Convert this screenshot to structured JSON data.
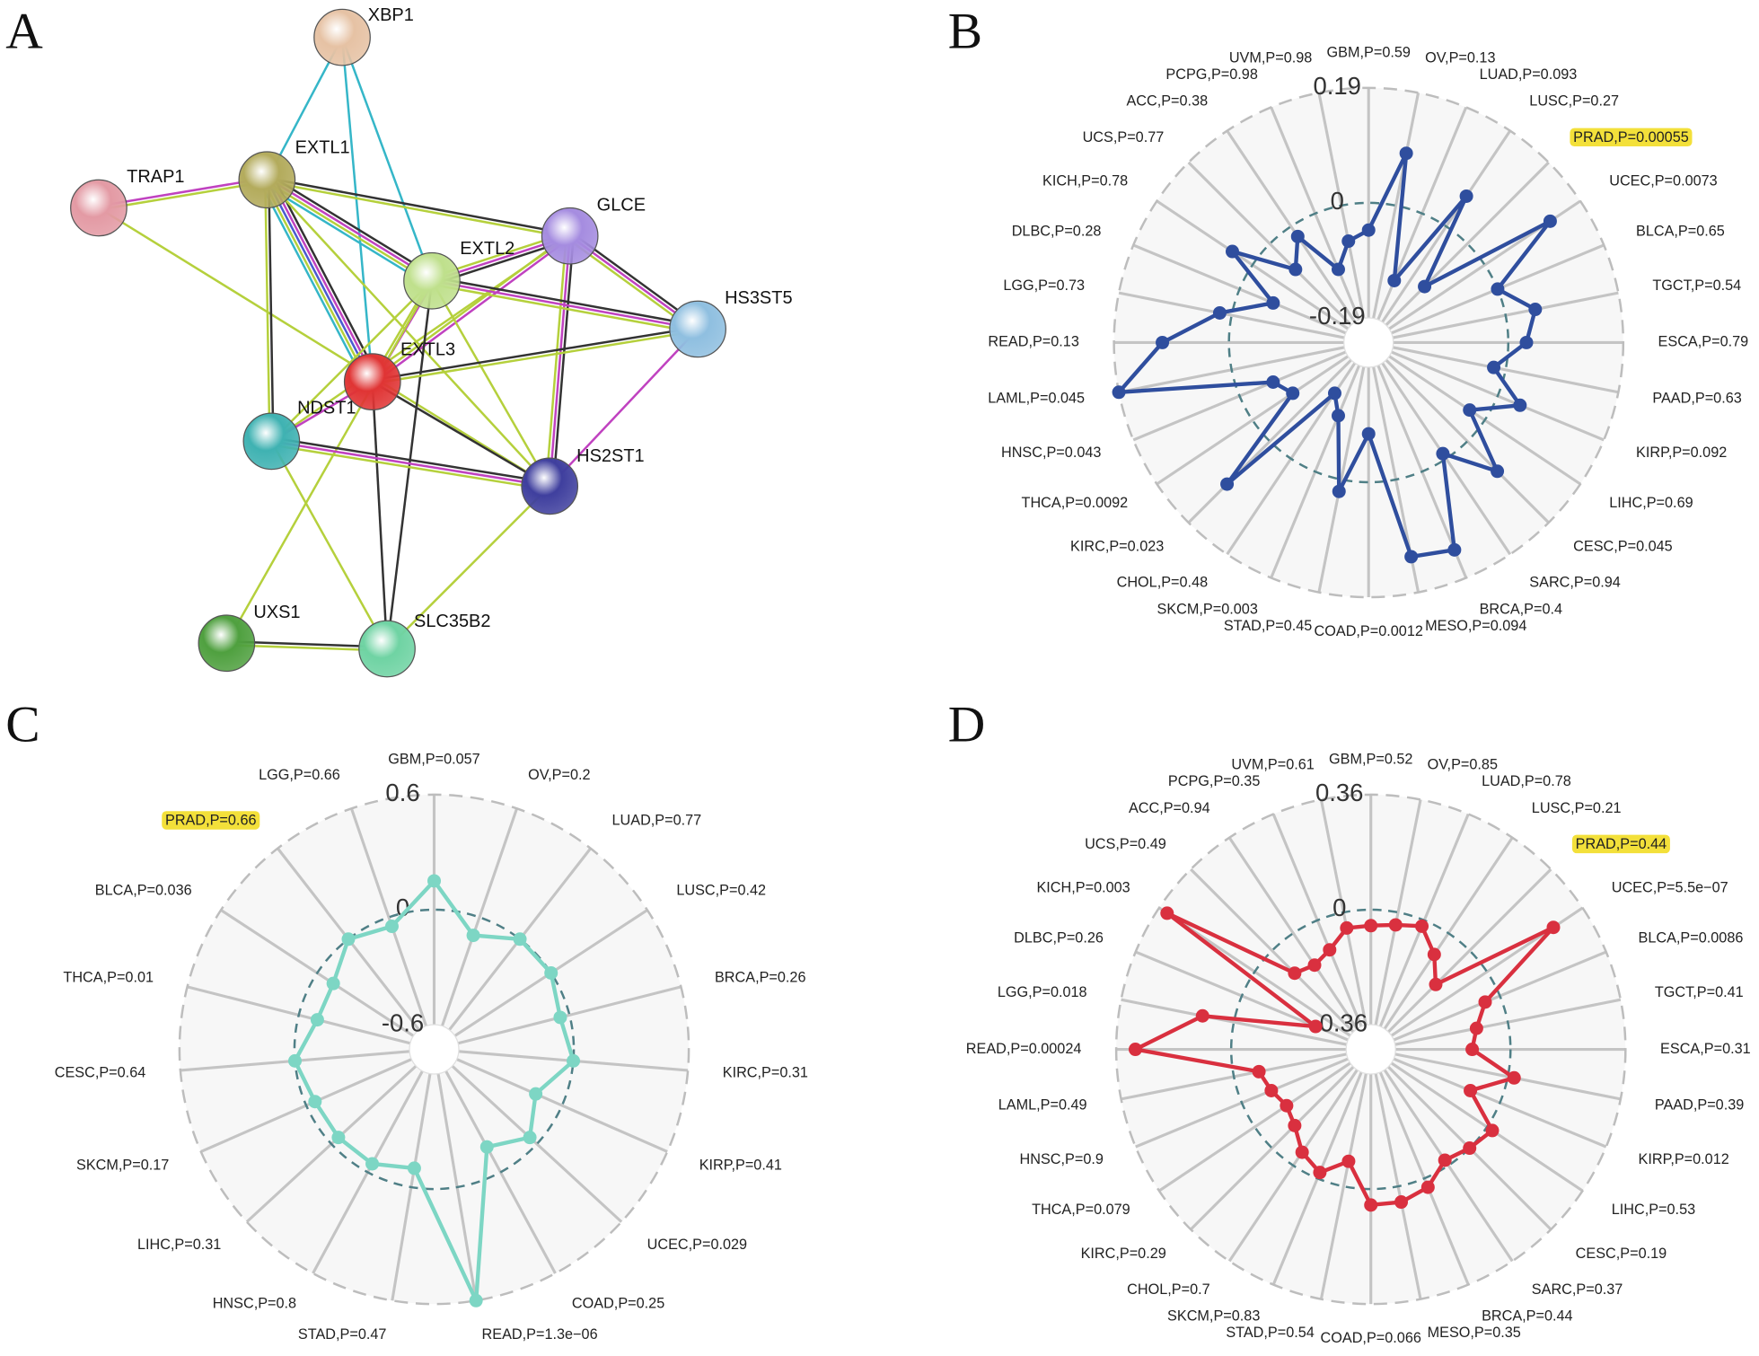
{
  "network": {
    "panel_label": "A",
    "nodes": [
      {
        "label": "XBP1",
        "color": "#e6c2a4"
      },
      {
        "label": "TRAP1",
        "color": "#e39aa4"
      },
      {
        "label": "EXTL1",
        "color": "#b3ab5c"
      },
      {
        "label": "GLCE",
        "color": "#a58ce0"
      },
      {
        "label": "EXTL2",
        "color": "#bfe08c"
      },
      {
        "label": "HS3ST5",
        "color": "#8fbfe0"
      },
      {
        "label": "EXTL3",
        "color": "#e03434"
      },
      {
        "label": "NDST1",
        "color": "#3fb2b2"
      },
      {
        "label": "HS2ST1",
        "color": "#3f3f9e"
      },
      {
        "label": "UXS1",
        "color": "#4fa03f"
      },
      {
        "label": "SLC35B2",
        "color": "#6fd3a3"
      }
    ],
    "edges": [
      {
        "source": 0,
        "target": 2,
        "colors": [
          "#35b6c8"
        ]
      },
      {
        "source": 0,
        "target": 4,
        "colors": [
          "#35b6c8"
        ]
      },
      {
        "source": 0,
        "target": 6,
        "colors": [
          "#35b6c8"
        ]
      },
      {
        "source": 1,
        "target": 2,
        "colors": [
          "#c042c0",
          "#b5d03c"
        ]
      },
      {
        "source": 1,
        "target": 8,
        "colors": [
          "#b5d03c"
        ]
      },
      {
        "source": 2,
        "target": 3,
        "colors": [
          "#333333",
          "#b5d03c"
        ]
      },
      {
        "source": 2,
        "target": 4,
        "colors": [
          "#333333",
          "#c042c0",
          "#b5d03c",
          "#35b6c8"
        ]
      },
      {
        "source": 2,
        "target": 6,
        "colors": [
          "#333333",
          "#c042c0",
          "#4a5bd0",
          "#b5d03c",
          "#35b6c8"
        ]
      },
      {
        "source": 2,
        "target": 7,
        "colors": [
          "#333333",
          "#b5d03c"
        ]
      },
      {
        "source": 2,
        "target": 8,
        "colors": [
          "#b5d03c"
        ]
      },
      {
        "source": 3,
        "target": 4,
        "colors": [
          "#333333",
          "#c042c0",
          "#b5d03c"
        ]
      },
      {
        "source": 3,
        "target": 5,
        "colors": [
          "#333333",
          "#c042c0",
          "#b5d03c"
        ]
      },
      {
        "source": 3,
        "target": 8,
        "colors": [
          "#333333",
          "#c042c0",
          "#b5d03c"
        ]
      },
      {
        "source": 3,
        "target": 6,
        "colors": [
          "#c042c0",
          "#b5d03c"
        ]
      },
      {
        "source": 3,
        "target": 7,
        "colors": [
          "#b5d03c"
        ]
      },
      {
        "source": 4,
        "target": 5,
        "colors": [
          "#333333",
          "#c042c0",
          "#b5d03c"
        ]
      },
      {
        "source": 4,
        "target": 6,
        "colors": [
          "#c042c0",
          "#b5d03c"
        ]
      },
      {
        "source": 4,
        "target": 7,
        "colors": [
          "#b5d03c"
        ]
      },
      {
        "source": 4,
        "target": 8,
        "colors": [
          "#b5d03c"
        ]
      },
      {
        "source": 4,
        "target": 9,
        "colors": [
          "#b5d03c"
        ]
      },
      {
        "source": 4,
        "target": 10,
        "colors": [
          "#333333"
        ]
      },
      {
        "source": 6,
        "target": 5,
        "colors": [
          "#333333",
          "#b5d03c"
        ]
      },
      {
        "source": 6,
        "target": 7,
        "colors": [
          "#c042c0"
        ]
      },
      {
        "source": 6,
        "target": 8,
        "colors": [
          "#333333"
        ]
      },
      {
        "source": 6,
        "target": 10,
        "colors": [
          "#333333"
        ]
      },
      {
        "source": 7,
        "target": 8,
        "colors": [
          "#333333",
          "#c042c0",
          "#b5d03c"
        ]
      },
      {
        "source": 7,
        "target": 10,
        "colors": [
          "#b5d03c"
        ]
      },
      {
        "source": 5,
        "target": 8,
        "colors": [
          "#c042c0"
        ]
      },
      {
        "source": 8,
        "target": 10,
        "colors": [
          "#b5d03c"
        ]
      },
      {
        "source": 9,
        "target": 10,
        "colors": [
          "#333333",
          "#b5d03c"
        ]
      }
    ]
  },
  "chart_data": [
    {
      "type": "radar",
      "panel_label": "B",
      "categories": [
        "GBM,P=0.59",
        "OV,P=0.13",
        "LUAD,P=0.093",
        "LUSC,P=0.27",
        "PRAD,P=0.00055",
        "UCEC,P=0.0073",
        "BLCA,P=0.65",
        "TGCT,P=0.54",
        "ESCA,P=0.79",
        "PAAD,P=0.63",
        "KIRP,P=0.092",
        "LIHC,P=0.69",
        "CESC,P=0.045",
        "SARC,P=0.94",
        "BRCA,P=0.4",
        "MESO,P=0.094",
        "COAD,P=0.0012",
        "STAD,P=0.45",
        "SKCM,P=0.003",
        "CHOL,P=0.48",
        "KIRC,P=0.023",
        "THCA,P=0.0092",
        "HNSC,P=0.043",
        "LAML,P=0.045",
        "READ,P=0.13",
        "LGG,P=0.73",
        "DLBC,P=0.28",
        "KICH,P=0.78",
        "UCS,P=0.77",
        "ACC,P=0.38",
        "PCPG,P=0.98",
        "UVM,P=0.98"
      ],
      "series": [
        {
          "color": "#2f4e9e",
          "values": [
            -0.045,
            0.088,
            -0.12,
            0.06,
            -0.1,
            0.13,
            0.0,
            0.05,
            0.03,
            -0.02,
            0.04,
            -0.03,
            0.07,
            -0.01,
            0.14,
            0.13,
            -0.08,
            0.02,
            -0.1,
            -0.13,
            0.1,
            -0.08,
            -0.06,
            0.19,
            0.11,
            0.02,
            -0.06,
            0.04,
            -0.06,
            -0.02,
            -0.1,
            -0.06
          ]
        }
      ],
      "ylim": [
        -0.19,
        0.19
      ],
      "yticks": [
        -0.19,
        0,
        0.19
      ],
      "highlight": 4,
      "highlight_color": "#f3e03a"
    },
    {
      "type": "radar",
      "panel_label": "C",
      "categories": [
        "GBM,P=0.057",
        "OV,P=0.2",
        "LUAD,P=0.77",
        "LUSC,P=0.42",
        "BRCA,P=0.26",
        "KIRC,P=0.31",
        "KIRP,P=0.41",
        "UCEC,P=0.029",
        "COAD,P=0.25",
        "READ,P=1.3e−06",
        "STAD,P=0.47",
        "HNSC,P=0.8",
        "LIHC,P=0.31",
        "SKCM,P=0.17",
        "CESC,P=0.64",
        "THCA,P=0.01",
        "BLCA,P=0.036",
        "PRAD,P=0.66",
        "LGG,P=0.66"
      ],
      "series": [
        {
          "color": "#7dd6c4",
          "values": [
            0.15,
            -0.1,
            0.0,
            0.0,
            -0.05,
            0.0,
            -0.15,
            -0.05,
            -0.15,
            0.6,
            -0.1,
            -0.05,
            -0.05,
            -0.05,
            0.0,
            -0.1,
            -0.1,
            0.0,
            -0.05
          ]
        }
      ],
      "ylim": [
        -0.6,
        0.6
      ],
      "yticks": [
        -0.6,
        0,
        0.6
      ],
      "highlight": 17,
      "highlight_color": "#f3e03a"
    },
    {
      "type": "radar",
      "panel_label": "D",
      "categories": [
        "GBM,P=0.52",
        "OV,P=0.85",
        "LUAD,P=0.78",
        "LUSC,P=0.21",
        "PRAD,P=0.44",
        "UCEC,P=5.5e−07",
        "BLCA,P=0.0086",
        "TGCT,P=0.41",
        "ESCA,P=0.31",
        "PAAD,P=0.39",
        "KIRP,P=0.012",
        "LIHC,P=0.53",
        "CESC,P=0.19",
        "SARC,P=0.37",
        "BRCA,P=0.44",
        "MESO,P=0.35",
        "COAD,P=0.066",
        "STAD,P=0.54",
        "SKCM,P=0.83",
        "CHOL,P=0.7",
        "KIRC,P=0.29",
        "THCA,P=0.079",
        "HNSC,P=0.9",
        "LAML,P=0.49",
        "READ,P=0.00024",
        "LGG,P=0.018",
        "DLBC,P=0.26",
        "KICH,P=0.003",
        "UCS,P=0.49",
        "ACC,P=0.94",
        "PCPG,P=0.35",
        "UVM,P=0.61"
      ],
      "series": [
        {
          "color": "#d9303f",
          "values": [
            -0.05,
            -0.04,
            -0.02,
            -0.08,
            -0.15,
            0.25,
            -0.05,
            -0.1,
            -0.12,
            0.02,
            -0.1,
            0.02,
            0.0,
            -0.02,
            0.03,
            0.05,
            0.05,
            -0.08,
            -0.02,
            -0.05,
            -0.1,
            -0.12,
            -0.1,
            -0.08,
            0.3,
            0.1,
            -0.25,
            0.33,
            -0.1,
            -0.12,
            -0.1,
            -0.05
          ]
        }
      ],
      "ylim": [
        -0.36,
        0.36
      ],
      "yticks": [
        -0.36,
        0,
        0.36
      ],
      "highlight": 4,
      "highlight_color": "#f3e03a"
    }
  ]
}
